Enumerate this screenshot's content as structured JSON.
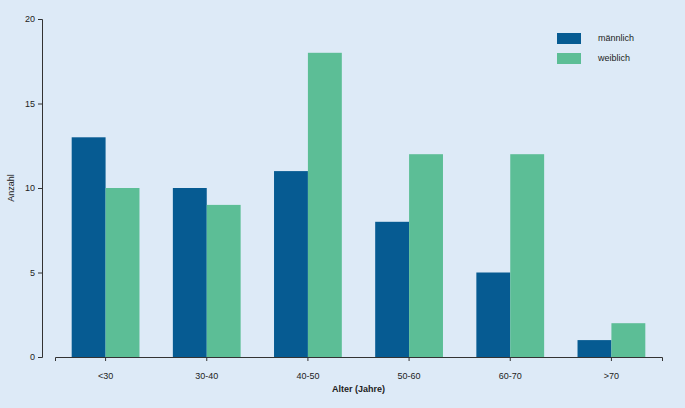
{
  "chart_data": {
    "type": "bar",
    "x_label": "Alter (Jahre)",
    "y_label": "Anzahl",
    "categories": [
      "<30",
      "30-40",
      "40-50",
      "50-60",
      "60-70",
      ">70"
    ],
    "series": [
      {
        "name": "männlich",
        "color": "#065b92",
        "values": [
          13,
          10,
          11,
          8,
          5,
          1
        ]
      },
      {
        "name": "weiblich",
        "color": "#5cbe96",
        "values": [
          10,
          9,
          18,
          12,
          12,
          2
        ]
      }
    ],
    "ylim": [
      0,
      20
    ],
    "yticks": [
      0,
      5,
      10,
      15,
      20
    ],
    "grid": false,
    "legend": "top-right"
  }
}
